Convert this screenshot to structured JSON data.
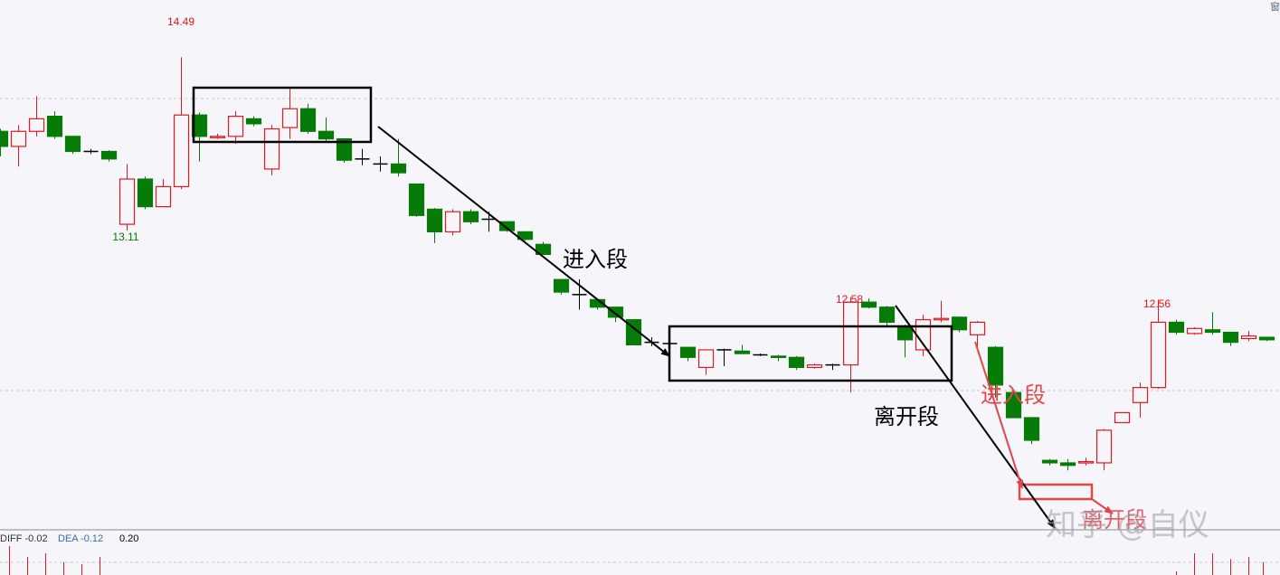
{
  "chart_data": {
    "type": "candlestick",
    "candles": [
      [
        13.9,
        13.78,
        13.92,
        13.7
      ],
      [
        13.78,
        13.9,
        13.95,
        13.62
      ],
      [
        13.9,
        14.0,
        14.18,
        13.86
      ],
      [
        14.02,
        13.86,
        14.06,
        13.84
      ],
      [
        13.86,
        13.74,
        13.86,
        13.72
      ],
      [
        13.74,
        13.74,
        13.76,
        13.72
      ],
      [
        13.74,
        13.68,
        13.75,
        13.66
      ],
      [
        13.16,
        13.52,
        13.64,
        13.11
      ],
      [
        13.52,
        13.3,
        13.54,
        13.28
      ],
      [
        13.3,
        13.46,
        13.52,
        13.3
      ],
      [
        13.46,
        14.03,
        14.49,
        13.44
      ],
      [
        14.03,
        13.86,
        14.05,
        13.66
      ],
      [
        13.85,
        13.86,
        13.88,
        13.84
      ],
      [
        13.86,
        14.02,
        14.06,
        13.8
      ],
      [
        14.0,
        13.96,
        14.02,
        13.94
      ],
      [
        13.6,
        13.92,
        13.95,
        13.55
      ],
      [
        13.93,
        14.08,
        14.25,
        13.84
      ],
      [
        14.08,
        13.9,
        14.12,
        13.88
      ],
      [
        13.9,
        13.84,
        14.01,
        13.82
      ],
      [
        13.84,
        13.67,
        13.84,
        13.65
      ],
      [
        13.68,
        13.68,
        13.76,
        13.63
      ],
      [
        13.64,
        13.64,
        13.7,
        13.58
      ],
      [
        13.64,
        13.57,
        13.84,
        13.54
      ],
      [
        13.48,
        13.23,
        13.48,
        13.22
      ],
      [
        13.28,
        13.1,
        13.29,
        13.01
      ],
      [
        13.1,
        13.26,
        13.28,
        13.07
      ],
      [
        13.26,
        13.18,
        13.28,
        13.16
      ],
      [
        13.2,
        13.2,
        13.26,
        13.1
      ],
      [
        13.18,
        13.11,
        13.18,
        13.1
      ],
      [
        13.1,
        13.04,
        13.1,
        13.03
      ],
      [
        13.0,
        12.92,
        13.02,
        12.92
      ],
      [
        12.72,
        12.62,
        12.72,
        12.6
      ],
      [
        12.6,
        12.6,
        12.72,
        12.48
      ],
      [
        12.56,
        12.5,
        12.56,
        12.48
      ],
      [
        12.5,
        12.42,
        12.5,
        12.38
      ],
      [
        12.4,
        12.2,
        12.4,
        12.2
      ],
      [
        12.22,
        12.22,
        12.26,
        12.19
      ],
      [
        12.21,
        12.21,
        12.24,
        12.19
      ],
      [
        12.18,
        12.1,
        12.18,
        12.07
      ],
      [
        12.02,
        12.16,
        12.16,
        11.96
      ],
      [
        12.16,
        12.16,
        12.17,
        12.03
      ],
      [
        12.15,
        12.13,
        12.2,
        12.13
      ],
      [
        12.12,
        12.12,
        12.13,
        12.11
      ],
      [
        12.11,
        12.1,
        12.12,
        12.07
      ],
      [
        12.1,
        12.02,
        12.11,
        12.0
      ],
      [
        12.02,
        12.04,
        12.05,
        12.01
      ],
      [
        12.04,
        12.04,
        12.05,
        12.0
      ],
      [
        12.04,
        12.54,
        12.58,
        11.82
      ],
      [
        12.54,
        12.5,
        12.57,
        12.49
      ],
      [
        12.5,
        12.38,
        12.51,
        12.35
      ],
      [
        12.35,
        12.24,
        12.36,
        12.1
      ],
      [
        12.16,
        12.4,
        12.44,
        12.11
      ],
      [
        12.4,
        12.41,
        12.55,
        12.38
      ],
      [
        12.42,
        12.32,
        12.42,
        12.3
      ],
      [
        12.28,
        12.38,
        12.39,
        12.16
      ],
      [
        12.18,
        11.88,
        12.19,
        11.78
      ],
      [
        11.82,
        11.62,
        11.82,
        11.62
      ],
      [
        11.62,
        11.44,
        11.62,
        11.41
      ],
      [
        11.28,
        11.26,
        11.29,
        11.24
      ],
      [
        11.26,
        11.24,
        11.29,
        11.2
      ],
      [
        11.26,
        11.27,
        11.3,
        11.24
      ],
      [
        11.26,
        11.52,
        11.53,
        11.2
      ],
      [
        11.58,
        11.66,
        11.66,
        11.58
      ],
      [
        11.74,
        11.86,
        11.9,
        11.62
      ],
      [
        11.86,
        12.38,
        12.56,
        11.85
      ],
      [
        12.38,
        12.3,
        12.4,
        12.28
      ],
      [
        12.29,
        12.33,
        12.34,
        12.28
      ],
      [
        12.32,
        12.3,
        12.46,
        12.28
      ],
      [
        12.3,
        12.22,
        12.3,
        12.19
      ],
      [
        12.25,
        12.27,
        12.31,
        12.23
      ],
      [
        12.26,
        12.24,
        12.26,
        12.23
      ]
    ],
    "high_labels": [
      "14.49",
      "12.58",
      "12.56"
    ],
    "low_labels": [
      "13.11"
    ],
    "annotations": [
      "进入段",
      "离开段",
      "进入段",
      "离开段"
    ],
    "indicator": {
      "diff": "DIFF -0.02",
      "dea": "DEA -0.12",
      "value": "0.20"
    },
    "watermark": "知乎 @自仪",
    "corner_text": "窗",
    "colors": {
      "up": "#e0191f",
      "down": "#077b07",
      "highlight": "#e0474c",
      "box": "#000000",
      "grid": "#c9c9cc"
    }
  }
}
